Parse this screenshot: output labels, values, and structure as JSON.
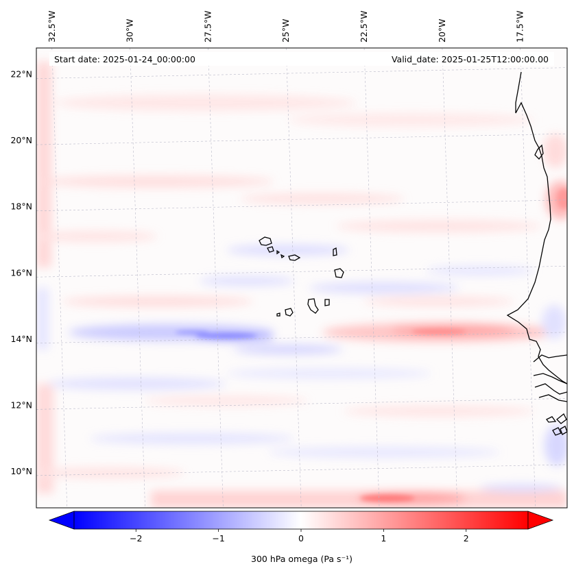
{
  "map": {
    "header_left": "Start date: 2025-01-24_00:00:00",
    "header_right": "Valid_date: 2025-01-25T12:00:00.00",
    "lon_labels": [
      "32.5°W",
      "30°W",
      "27.5°W",
      "25°W",
      "22.5°W",
      "20°W",
      "17.5°W"
    ],
    "lat_labels": [
      "22°N",
      "20°N",
      "18°N",
      "16°N",
      "14°N",
      "12°N",
      "10°N"
    ],
    "extent": {
      "lon_min": -33.0,
      "lon_max": -16.0,
      "lat_min": 8.9,
      "lat_max": 22.8
    },
    "gridlines": true
  },
  "colorbar": {
    "label": "300 hPa omega (Pa s⁻¹)",
    "min": -2.75,
    "max": 2.75,
    "ticks": [
      {
        "value": -2,
        "label": "−2"
      },
      {
        "value": -1,
        "label": "−1"
      },
      {
        "value": 0,
        "label": "0"
      },
      {
        "value": 1,
        "label": "1"
      },
      {
        "value": 2,
        "label": "2"
      }
    ],
    "extend": "both",
    "color_low": "#0000ff",
    "color_mid": "#ffffff",
    "color_high": "#ff0000"
  },
  "field_features": [
    {
      "name": "northern-coast-strip",
      "lon": -16.6,
      "lat": 18.3,
      "omega": 1.0
    },
    {
      "name": "southern-positive-band",
      "lon": -21.0,
      "lat": 9.3,
      "omega": 1.2
    },
    {
      "name": "central-positive-band",
      "lon": -20.0,
      "lat": 14.1,
      "omega": 0.7
    },
    {
      "name": "central-negative-band",
      "lon": -27.0,
      "lat": 14.0,
      "omega": -0.9
    },
    {
      "name": "western-edge-positive",
      "lon": -32.7,
      "lat": 16.0,
      "omega": 0.5
    }
  ]
}
